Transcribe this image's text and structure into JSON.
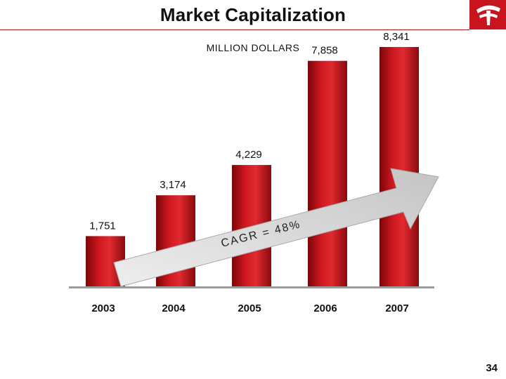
{
  "header": {
    "title": "Market Capitalization"
  },
  "page_number": "34",
  "colors": {
    "bar": "#c8141c",
    "bar_dark": "#7a0608",
    "rule": "#a31515",
    "arrow": "#d8d8d8"
  },
  "chart_data": {
    "type": "bar",
    "title": "",
    "subtitle": "MILLION DOLLARS",
    "categories": [
      "2003",
      "2004",
      "2005",
      "2006",
      "2007"
    ],
    "values": [
      1751,
      3174,
      4229,
      7858,
      8341
    ],
    "value_labels": [
      "1,751",
      "3,174",
      "4,229",
      "7,858",
      "8,341"
    ],
    "ylim": [
      0,
      9000
    ],
    "grid": false,
    "annotation": "CAGR = 48%"
  }
}
